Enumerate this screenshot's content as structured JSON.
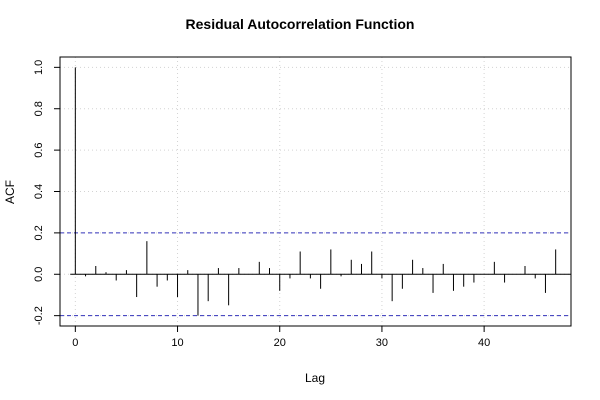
{
  "chart_data": {
    "type": "bar",
    "title": "Residual Autocorrelation Function",
    "xlabel": "Lag",
    "ylabel": "ACF",
    "xlim": [
      -1.5,
      48.5
    ],
    "ylim": [
      -0.25,
      1.05
    ],
    "x_ticks": [
      0,
      10,
      20,
      30,
      40
    ],
    "y_ticks": [
      -0.2,
      0.0,
      0.2,
      0.4,
      0.6,
      0.8,
      1.0
    ],
    "y_tick_labels": [
      "-0.2",
      "0.0",
      "0.2",
      "0.4",
      "0.6",
      "0.8",
      "1.0"
    ],
    "grid": true,
    "confidence_bounds": [
      0.2,
      -0.2
    ],
    "lags": [
      0,
      1,
      2,
      3,
      4,
      5,
      6,
      7,
      8,
      9,
      10,
      11,
      12,
      13,
      14,
      15,
      16,
      17,
      18,
      19,
      20,
      21,
      22,
      23,
      24,
      25,
      26,
      27,
      28,
      29,
      30,
      31,
      32,
      33,
      34,
      35,
      36,
      37,
      38,
      39,
      40,
      41,
      42,
      43,
      44,
      45,
      46,
      47
    ],
    "values": [
      1.0,
      -0.01,
      0.04,
      0.01,
      -0.03,
      0.02,
      -0.11,
      0.16,
      -0.06,
      -0.03,
      -0.11,
      0.02,
      -0.2,
      -0.13,
      0.03,
      -0.15,
      0.03,
      0.0,
      0.06,
      0.03,
      -0.08,
      -0.02,
      0.11,
      -0.02,
      -0.07,
      0.12,
      -0.01,
      0.07,
      0.05,
      0.11,
      -0.02,
      -0.13,
      -0.07,
      0.07,
      0.03,
      -0.09,
      0.05,
      -0.08,
      -0.06,
      -0.04,
      0.0,
      0.06,
      -0.04,
      0.0,
      0.04,
      -0.02,
      -0.09,
      0.12
    ]
  },
  "colors": {
    "bar": "#000000",
    "bounds": "#3333bb",
    "grid": "#d3d3d3",
    "axis": "#000000"
  }
}
